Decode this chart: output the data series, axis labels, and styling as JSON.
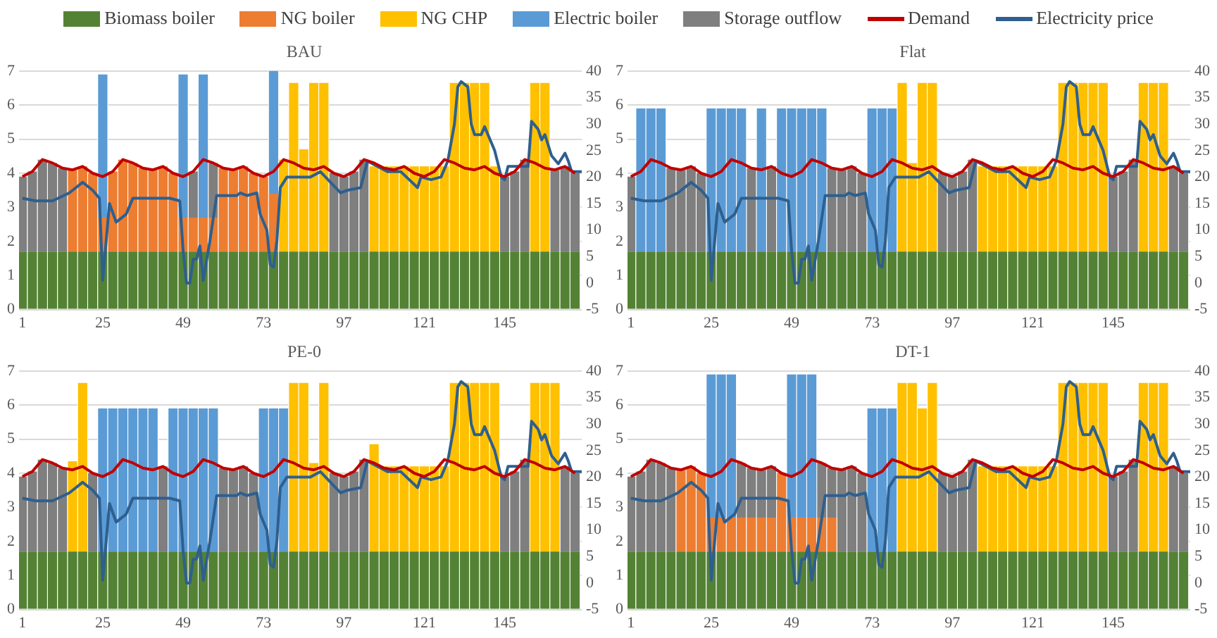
{
  "chart_data": [
    {
      "type": "bar",
      "title": "BAU",
      "stacked": true,
      "legend": "top",
      "grid": "y",
      "xlim": [
        0,
        168
      ],
      "xticks": [
        1,
        25,
        49,
        73,
        97,
        121,
        145
      ],
      "ylim": [
        0,
        7
      ],
      "yticks": [
        0,
        1,
        2,
        3,
        4,
        5,
        6,
        7
      ],
      "y2lim": [
        -5,
        40
      ],
      "y2ticks": [
        -5,
        0,
        5,
        10,
        15,
        20,
        25,
        30,
        35,
        40
      ],
      "x": [
        1,
        4,
        7,
        10,
        13,
        16,
        19,
        22,
        25,
        28,
        31,
        34,
        37,
        40,
        43,
        46,
        49,
        52,
        55,
        58,
        61,
        64,
        67,
        70,
        73,
        76,
        79,
        82,
        85,
        88,
        91,
        94,
        97,
        100,
        103,
        106,
        109,
        112,
        115,
        118,
        121,
        124,
        127,
        130,
        133,
        136,
        139,
        142,
        145,
        148,
        151,
        154,
        157,
        160,
        163,
        166
      ],
      "series": [
        {
          "name": "Biomass boiler",
          "color": "#548235",
          "values": [
            1.7,
            1.7,
            1.7,
            1.7,
            1.7,
            1.7,
            1.7,
            1.7,
            1.7,
            1.7,
            1.7,
            1.7,
            1.7,
            1.7,
            1.7,
            1.7,
            1.7,
            1.7,
            1.7,
            1.7,
            1.7,
            1.7,
            1.7,
            1.7,
            1.7,
            1.7,
            1.7,
            1.7,
            1.7,
            1.7,
            1.7,
            1.7,
            1.7,
            1.7,
            1.7,
            1.7,
            1.7,
            1.7,
            1.7,
            1.7,
            1.7,
            1.7,
            1.7,
            1.7,
            1.7,
            1.7,
            1.7,
            1.7,
            1.7,
            1.7,
            1.7,
            1.7,
            1.7,
            1.7,
            1.7,
            1.7
          ]
        },
        {
          "name": "NG boiler",
          "color": "#ed7d31",
          "values": [
            0,
            0,
            0,
            0,
            0,
            2.4,
            2.5,
            2.3,
            1,
            2.35,
            2.7,
            2.6,
            2.45,
            2.4,
            2.5,
            2.3,
            1,
            1,
            1,
            1,
            2.45,
            2.4,
            2.5,
            2.3,
            2.2,
            1.7,
            0,
            0,
            0,
            0,
            0,
            0,
            0,
            0,
            0,
            0,
            0,
            0,
            0,
            0,
            0,
            0,
            0,
            0,
            0,
            0,
            0,
            0,
            0,
            0,
            0,
            0,
            0,
            0,
            0,
            0
          ]
        },
        {
          "name": "NG CHP",
          "color": "#ffc000",
          "values": [
            0,
            0,
            0,
            0,
            0,
            0,
            0,
            0,
            0,
            0,
            0,
            0,
            0,
            0,
            0,
            0,
            0,
            0,
            0,
            0,
            0,
            0,
            0,
            0,
            0,
            0,
            2.7,
            4.95,
            3,
            4.95,
            4.95,
            0,
            0,
            0,
            0,
            2.5,
            2.5,
            2.5,
            2.5,
            2.5,
            2.5,
            2.5,
            2.5,
            4.95,
            4.95,
            4.95,
            4.95,
            2.5,
            0,
            0,
            0,
            4.95,
            4.95,
            0,
            0,
            0
          ]
        },
        {
          "name": "Electric boiler",
          "color": "#5b9bd5",
          "values": [
            0,
            0,
            0,
            0,
            0,
            0,
            0,
            0,
            4.2,
            0,
            0,
            0,
            0,
            0,
            0,
            0,
            4.2,
            0,
            4.2,
            0,
            0,
            0,
            0,
            0,
            0,
            3.6,
            0,
            0,
            0,
            0,
            0,
            0,
            0,
            0,
            0,
            0,
            0,
            0,
            0,
            0,
            0,
            0,
            0,
            0,
            0,
            0,
            0,
            0,
            0,
            0,
            0,
            0,
            0,
            0,
            0,
            0
          ]
        },
        {
          "name": "Storage outflow",
          "color": "#7f7f7f",
          "values": [
            2.2,
            2.35,
            2.7,
            2.6,
            2.45,
            0,
            0,
            0,
            0,
            0,
            0,
            0,
            0,
            0,
            0,
            0,
            0,
            1.35,
            0,
            1.6,
            0,
            0,
            0,
            0,
            0,
            0,
            0,
            0,
            0,
            0,
            0,
            2.3,
            2.2,
            2.35,
            2.7,
            0,
            0,
            0,
            0,
            0,
            0,
            0,
            0,
            0,
            0,
            0,
            0,
            0,
            2.2,
            2.35,
            2.7,
            0,
            0,
            2.4,
            2.5,
            2.3
          ]
        },
        {
          "name": "Demand",
          "type": "line",
          "color": "#c00000",
          "values": [
            3.9,
            4.05,
            4.4,
            4.3,
            4.15,
            4.1,
            4.2,
            4.0,
            3.9,
            4.05,
            4.4,
            4.3,
            4.15,
            4.1,
            4.2,
            4.0,
            3.9,
            4.05,
            4.4,
            4.3,
            4.15,
            4.1,
            4.2,
            4.0,
            3.9,
            4.05,
            4.4,
            4.3,
            4.15,
            4.1,
            4.2,
            4.0,
            3.9,
            4.05,
            4.4,
            4.3,
            4.15,
            4.1,
            4.2,
            4.0,
            3.9,
            4.05,
            4.4,
            4.3,
            4.15,
            4.1,
            4.2,
            4.0,
            3.9,
            4.05,
            4.4,
            4.3,
            4.15,
            4.1,
            4.2,
            4.0
          ]
        },
        {
          "name": "Electricity price",
          "type": "line",
          "axis": "y2",
          "color": "#2e5f8e",
          "x": [
            1,
            5,
            10,
            15,
            19,
            22,
            24,
            25,
            27,
            29,
            32,
            34,
            40,
            45,
            48,
            49,
            50,
            51,
            52,
            53,
            54,
            55,
            57,
            59,
            65,
            66,
            68,
            71,
            72,
            74,
            75,
            76,
            77,
            78,
            80,
            87,
            90,
            96,
            98,
            102,
            104,
            107,
            110,
            114,
            119,
            120,
            123,
            126,
            128,
            130,
            131,
            132,
            134,
            135,
            136,
            138,
            139,
            142,
            144,
            145,
            146,
            151,
            152,
            153,
            155,
            156,
            157,
            159,
            161,
            163,
            164,
            165,
            168
          ],
          "values": [
            16,
            15.5,
            15.5,
            17,
            19,
            17.5,
            16,
            0.5,
            15,
            11.5,
            13,
            16,
            16,
            16,
            15.5,
            6,
            0,
            0,
            4.5,
            4.5,
            7,
            0.5,
            8,
            16.5,
            16.5,
            17,
            16.5,
            17,
            13,
            10,
            3.5,
            3,
            8,
            18,
            20,
            20,
            21,
            17,
            17.5,
            18,
            23,
            22,
            21,
            21,
            18,
            20,
            19.5,
            20,
            23,
            30,
            37,
            38,
            37,
            30,
            28,
            28,
            29.5,
            25,
            20,
            19.5,
            22,
            22,
            22,
            30.5,
            29,
            27,
            28,
            24,
            22.5,
            24.5,
            23,
            21,
            21
          ]
        }
      ]
    },
    {
      "type": "bar",
      "title": "Flat",
      "stacked": true,
      "grid": "y",
      "xlim": [
        0,
        168
      ],
      "xticks": [
        1,
        25,
        49,
        73,
        97,
        121,
        145
      ],
      "ylim": [
        0,
        7
      ],
      "yticks": [
        0,
        1,
        2,
        3,
        4,
        5,
        6,
        7
      ],
      "y2lim": [
        -5,
        40
      ],
      "y2ticks": [
        -5,
        0,
        5,
        10,
        15,
        20,
        25,
        30,
        35,
        40
      ],
      "x": [
        1,
        4,
        7,
        10,
        13,
        16,
        19,
        22,
        25,
        28,
        31,
        34,
        37,
        40,
        43,
        46,
        49,
        52,
        55,
        58,
        61,
        64,
        67,
        70,
        73,
        76,
        79,
        82,
        85,
        88,
        91,
        94,
        97,
        100,
        103,
        106,
        109,
        112,
        115,
        118,
        121,
        124,
        127,
        130,
        133,
        136,
        139,
        142,
        145,
        148,
        151,
        154,
        157,
        160,
        163,
        166
      ],
      "series": [
        {
          "color": "#548235",
          "values": [
            1.7,
            1.7,
            1.7,
            1.7,
            1.7,
            1.7,
            1.7,
            1.7,
            1.7,
            1.7,
            1.7,
            1.7,
            1.7,
            1.7,
            1.7,
            1.7,
            1.7,
            1.7,
            1.7,
            1.7,
            1.7,
            1.7,
            1.7,
            1.7,
            1.7,
            1.7,
            1.7,
            1.7,
            1.7,
            1.7,
            1.7,
            1.7,
            1.7,
            1.7,
            1.7,
            1.7,
            1.7,
            1.7,
            1.7,
            1.7,
            1.7,
            1.7,
            1.7,
            1.7,
            1.7,
            1.7,
            1.7,
            1.7,
            1.7,
            1.7,
            1.7,
            1.7,
            1.7,
            1.7,
            1.7,
            1.7
          ]
        },
        {
          "color": "#ffc000",
          "values": [
            0,
            0,
            0,
            0,
            0,
            0,
            0,
            0,
            0,
            0,
            0,
            0,
            0,
            0,
            0,
            0,
            0,
            0,
            0,
            0,
            0,
            0,
            0,
            0,
            0,
            0,
            0,
            4.95,
            2.6,
            4.95,
            4.95,
            0,
            0,
            0,
            0,
            2.5,
            2.5,
            2.5,
            2.5,
            2.5,
            2.5,
            2.5,
            2.5,
            4.95,
            4.95,
            4.95,
            4.95,
            4.95,
            0,
            0,
            0,
            4.95,
            4.95,
            4.95,
            0,
            0
          ]
        },
        {
          "color": "#5b9bd5",
          "values": [
            0,
            4.2,
            4.2,
            4.2,
            0,
            0,
            0,
            0,
            4.2,
            4.2,
            4.2,
            4.2,
            0,
            4.2,
            0,
            4.2,
            4.2,
            4.2,
            4.2,
            4.2,
            0,
            0,
            0,
            0,
            4.2,
            4.2,
            4.2,
            0,
            0,
            0,
            0,
            0,
            0,
            0,
            0,
            0,
            0,
            0,
            0,
            0,
            0,
            0,
            0,
            0,
            0,
            0,
            0,
            0,
            0,
            0,
            0,
            0,
            0,
            0,
            0,
            0
          ]
        },
        {
          "color": "#7f7f7f",
          "values": [
            2.2,
            0,
            0,
            0,
            2.45,
            2.4,
            2.5,
            2.3,
            0,
            0,
            0,
            0,
            2.45,
            0,
            2.5,
            0,
            0,
            0,
            0,
            0,
            2.45,
            2.4,
            2.5,
            2.3,
            0,
            0,
            0,
            0,
            0,
            0,
            0,
            2.3,
            2.2,
            2.35,
            2.7,
            0,
            0,
            0,
            0,
            0,
            0,
            0,
            0,
            0,
            0,
            0,
            0,
            0,
            2.2,
            2.35,
            2.7,
            0,
            0,
            0,
            2.5,
            2.3
          ]
        },
        {
          "type": "line",
          "color": "#c00000",
          "values": [
            3.9,
            4.05,
            4.4,
            4.3,
            4.15,
            4.1,
            4.2,
            4.0,
            3.9,
            4.05,
            4.4,
            4.3,
            4.15,
            4.1,
            4.2,
            4.0,
            3.9,
            4.05,
            4.4,
            4.3,
            4.15,
            4.1,
            4.2,
            4.0,
            3.9,
            4.05,
            4.4,
            4.3,
            4.15,
            4.1,
            4.2,
            4.0,
            3.9,
            4.05,
            4.4,
            4.3,
            4.15,
            4.1,
            4.2,
            4.0,
            3.9,
            4.05,
            4.4,
            4.3,
            4.15,
            4.1,
            4.2,
            4.0,
            3.9,
            4.05,
            4.4,
            4.3,
            4.15,
            4.1,
            4.2,
            4.0
          ]
        },
        {
          "type": "line",
          "axis": "y2",
          "color": "#2e5f8e",
          "x": [
            1,
            5,
            10,
            15,
            19,
            22,
            24,
            25,
            27,
            29,
            32,
            34,
            40,
            45,
            48,
            49,
            50,
            51,
            52,
            53,
            54,
            55,
            57,
            59,
            65,
            66,
            68,
            71,
            72,
            74,
            75,
            76,
            77,
            78,
            80,
            87,
            90,
            96,
            98,
            102,
            104,
            107,
            110,
            114,
            119,
            120,
            123,
            126,
            128,
            130,
            131,
            132,
            134,
            135,
            136,
            138,
            139,
            142,
            144,
            145,
            146,
            151,
            152,
            153,
            155,
            156,
            157,
            159,
            161,
            163,
            164,
            165,
            168
          ],
          "values": [
            16,
            15.5,
            15.5,
            17,
            19,
            17.5,
            16,
            0.5,
            15,
            11.5,
            13,
            16,
            16,
            16,
            15.5,
            6,
            0,
            0,
            4.5,
            4.5,
            7,
            0.5,
            8,
            16.5,
            16.5,
            17,
            16.5,
            17,
            13,
            10,
            3.5,
            3,
            8,
            18,
            20,
            20,
            21,
            17,
            17.5,
            18,
            23,
            22,
            21,
            21,
            18,
            20,
            19.5,
            20,
            23,
            30,
            37,
            38,
            37,
            30,
            28,
            28,
            29.5,
            25,
            20,
            19.5,
            22,
            22,
            22,
            30.5,
            29,
            27,
            28,
            24,
            22.5,
            24.5,
            23,
            21,
            21
          ]
        }
      ]
    },
    {
      "type": "bar",
      "title": "PE-0",
      "stacked": true,
      "grid": "y",
      "xlim": [
        0,
        168
      ],
      "xticks": [
        1,
        25,
        49,
        73,
        97,
        121,
        145
      ],
      "ylim": [
        0,
        7
      ],
      "yticks": [
        0,
        1,
        2,
        3,
        4,
        5,
        6,
        7
      ],
      "y2lim": [
        -5,
        40
      ],
      "y2ticks": [
        -5,
        0,
        5,
        10,
        15,
        20,
        25,
        30,
        35,
        40
      ],
      "x": [
        1,
        4,
        7,
        10,
        13,
        16,
        19,
        22,
        25,
        28,
        31,
        34,
        37,
        40,
        43,
        46,
        49,
        52,
        55,
        58,
        61,
        64,
        67,
        70,
        73,
        76,
        79,
        82,
        85,
        88,
        91,
        94,
        97,
        100,
        103,
        106,
        109,
        112,
        115,
        118,
        121,
        124,
        127,
        130,
        133,
        136,
        139,
        142,
        145,
        148,
        151,
        154,
        157,
        160,
        163,
        166
      ],
      "series": [
        {
          "color": "#548235",
          "values": [
            1.7,
            1.7,
            1.7,
            1.7,
            1.7,
            1.7,
            1.7,
            1.7,
            1.7,
            1.7,
            1.7,
            1.7,
            1.7,
            1.7,
            1.7,
            1.7,
            1.7,
            1.7,
            1.7,
            1.7,
            1.7,
            1.7,
            1.7,
            1.7,
            1.7,
            1.7,
            1.7,
            1.7,
            1.7,
            1.7,
            1.7,
            1.7,
            1.7,
            1.7,
            1.7,
            1.7,
            1.7,
            1.7,
            1.7,
            1.7,
            1.7,
            1.7,
            1.7,
            1.7,
            1.7,
            1.7,
            1.7,
            1.7,
            1.7,
            1.7,
            1.7,
            1.7,
            1.7,
            1.7,
            1.7,
            1.7
          ]
        },
        {
          "color": "#ffc000",
          "values": [
            0,
            0,
            0,
            0,
            0,
            2.65,
            4.95,
            0,
            0,
            0,
            0,
            0,
            0,
            0,
            0,
            0,
            0,
            0,
            0,
            0,
            0,
            0,
            0,
            0,
            0,
            0,
            0,
            4.95,
            4.95,
            2.6,
            4.95,
            0,
            0,
            0,
            0,
            3.15,
            2.5,
            2.5,
            2.5,
            2.5,
            2.5,
            2.5,
            2.5,
            4.95,
            4.95,
            4.95,
            4.95,
            4.95,
            0,
            0,
            0,
            4.95,
            4.95,
            4.95,
            0,
            0
          ]
        },
        {
          "color": "#5b9bd5",
          "values": [
            0,
            0,
            0,
            0,
            0,
            0,
            0,
            0,
            4.2,
            4.2,
            4.2,
            4.2,
            4.2,
            4.2,
            0,
            4.2,
            4.2,
            4.2,
            4.2,
            4.2,
            0,
            0,
            0,
            0,
            4.2,
            4.2,
            4.2,
            0,
            0,
            0,
            0,
            0,
            0,
            0,
            0,
            0,
            0,
            0,
            0,
            0,
            0,
            0,
            0,
            0,
            0,
            0,
            0,
            0,
            0,
            0,
            0,
            0,
            0,
            0,
            0,
            0
          ]
        },
        {
          "color": "#7f7f7f",
          "values": [
            2.2,
            2.35,
            2.7,
            2.6,
            2.45,
            0,
            0,
            2.3,
            0,
            0,
            0,
            0,
            0,
            0,
            2.5,
            0,
            0,
            0,
            0,
            0,
            2.45,
            2.4,
            2.5,
            2.3,
            0,
            0,
            0,
            0,
            0,
            0,
            0,
            2.3,
            2.2,
            2.35,
            2.7,
            0,
            0,
            0,
            0,
            0,
            0,
            0,
            0,
            0,
            0,
            0,
            0,
            0,
            2.2,
            2.35,
            2.7,
            0,
            0,
            0,
            2.5,
            2.3
          ]
        },
        {
          "type": "line",
          "color": "#c00000",
          "values": [
            3.9,
            4.05,
            4.4,
            4.3,
            4.15,
            4.1,
            4.2,
            4.0,
            3.9,
            4.05,
            4.4,
            4.3,
            4.15,
            4.1,
            4.2,
            4.0,
            3.9,
            4.05,
            4.4,
            4.3,
            4.15,
            4.1,
            4.2,
            4.0,
            3.9,
            4.05,
            4.4,
            4.3,
            4.15,
            4.1,
            4.2,
            4.0,
            3.9,
            4.05,
            4.4,
            4.3,
            4.15,
            4.1,
            4.2,
            4.0,
            3.9,
            4.05,
            4.4,
            4.3,
            4.15,
            4.1,
            4.2,
            4.0,
            3.9,
            4.05,
            4.4,
            4.3,
            4.15,
            4.1,
            4.2,
            4.0
          ]
        },
        {
          "type": "line",
          "axis": "y2",
          "color": "#2e5f8e",
          "x": [
            1,
            5,
            10,
            15,
            19,
            22,
            24,
            25,
            27,
            29,
            32,
            34,
            40,
            45,
            48,
            49,
            50,
            51,
            52,
            53,
            54,
            55,
            57,
            59,
            65,
            66,
            68,
            71,
            72,
            74,
            75,
            76,
            77,
            78,
            80,
            87,
            90,
            96,
            98,
            102,
            104,
            107,
            110,
            114,
            119,
            120,
            123,
            126,
            128,
            130,
            131,
            132,
            134,
            135,
            136,
            138,
            139,
            142,
            144,
            145,
            146,
            151,
            152,
            153,
            155,
            156,
            157,
            159,
            161,
            163,
            164,
            165,
            168
          ],
          "values": [
            16,
            15.5,
            15.5,
            17,
            19,
            17.5,
            16,
            0.5,
            15,
            11.5,
            13,
            16,
            16,
            16,
            15.5,
            6,
            0,
            0,
            4.5,
            4.5,
            7,
            0.5,
            8,
            16.5,
            16.5,
            17,
            16.5,
            17,
            13,
            10,
            3.5,
            3,
            8,
            18,
            20,
            20,
            21,
            17,
            17.5,
            18,
            23,
            22,
            21,
            21,
            18,
            20,
            19.5,
            20,
            23,
            30,
            37,
            38,
            37,
            30,
            28,
            28,
            29.5,
            25,
            20,
            19.5,
            22,
            22,
            22,
            30.5,
            29,
            27,
            28,
            24,
            22.5,
            24.5,
            23,
            21,
            21
          ]
        }
      ]
    },
    {
      "type": "bar",
      "title": "DT-1",
      "stacked": true,
      "grid": "y",
      "xlim": [
        0,
        168
      ],
      "xticks": [
        1,
        25,
        49,
        73,
        97,
        121,
        145
      ],
      "ylim": [
        0,
        7
      ],
      "yticks": [
        0,
        1,
        2,
        3,
        4,
        5,
        6,
        7
      ],
      "y2lim": [
        -5,
        40
      ],
      "y2ticks": [
        -5,
        0,
        5,
        10,
        15,
        20,
        25,
        30,
        35,
        40
      ],
      "x": [
        1,
        4,
        7,
        10,
        13,
        16,
        19,
        22,
        25,
        28,
        31,
        34,
        37,
        40,
        43,
        46,
        49,
        52,
        55,
        58,
        61,
        64,
        67,
        70,
        73,
        76,
        79,
        82,
        85,
        88,
        91,
        94,
        97,
        100,
        103,
        106,
        109,
        112,
        115,
        118,
        121,
        124,
        127,
        130,
        133,
        136,
        139,
        142,
        145,
        148,
        151,
        154,
        157,
        160,
        163,
        166
      ],
      "series": [
        {
          "color": "#548235",
          "values": [
            1.7,
            1.7,
            1.7,
            1.7,
            1.7,
            1.7,
            1.7,
            1.7,
            1.7,
            1.7,
            1.7,
            1.7,
            1.7,
            1.7,
            1.7,
            1.7,
            1.7,
            1.7,
            1.7,
            1.7,
            1.7,
            1.7,
            1.7,
            1.7,
            1.7,
            1.7,
            1.7,
            1.7,
            1.7,
            1.7,
            1.7,
            1.7,
            1.7,
            1.7,
            1.7,
            1.7,
            1.7,
            1.7,
            1.7,
            1.7,
            1.7,
            1.7,
            1.7,
            1.7,
            1.7,
            1.7,
            1.7,
            1.7,
            1.7,
            1.7,
            1.7,
            1.7,
            1.7,
            1.7,
            1.7,
            1.7
          ]
        },
        {
          "color": "#ed7d31",
          "values": [
            0,
            0,
            0,
            0,
            0,
            2.4,
            2.5,
            2.3,
            1,
            1,
            1,
            1,
            1,
            1,
            1,
            2.3,
            1,
            1,
            1,
            1,
            1,
            0,
            0,
            0,
            0,
            0,
            0,
            0,
            0,
            0,
            0,
            0,
            0,
            0,
            0,
            0,
            0,
            0,
            0,
            0,
            0,
            0,
            0,
            0,
            0,
            0,
            0,
            0,
            0,
            0,
            0,
            0,
            0,
            0,
            0,
            0
          ]
        },
        {
          "color": "#ffc000",
          "values": [
            0,
            0,
            0,
            0,
            0,
            0,
            0,
            0,
            0,
            0,
            0,
            0,
            0,
            0,
            0,
            0,
            0,
            0,
            0,
            0,
            0,
            0,
            0,
            0,
            0,
            0,
            0,
            4.95,
            4.95,
            4.2,
            4.95,
            0,
            0,
            0,
            0,
            2.5,
            2.5,
            2.5,
            2.5,
            2.5,
            2.5,
            2.5,
            2.5,
            4.95,
            4.95,
            4.95,
            4.95,
            4.95,
            0,
            0,
            0,
            4.95,
            4.95,
            4.95,
            0,
            0
          ]
        },
        {
          "color": "#5b9bd5",
          "values": [
            0,
            0,
            0,
            0,
            0,
            0,
            0,
            0,
            4.2,
            4.2,
            4.2,
            0,
            0,
            0,
            0,
            0,
            4.2,
            4.2,
            4.2,
            0,
            0,
            0,
            0,
            0,
            4.2,
            4.2,
            4.2,
            0,
            0,
            0,
            0,
            0,
            0,
            0,
            0,
            0,
            0,
            0,
            0,
            0,
            0,
            0,
            0,
            0,
            0,
            0,
            0,
            0,
            0,
            0,
            0,
            0,
            0,
            0,
            0,
            0
          ]
        },
        {
          "color": "#7f7f7f",
          "values": [
            2.2,
            2.35,
            2.7,
            2.6,
            2.45,
            0,
            0,
            0,
            0,
            0,
            0,
            1.6,
            1.45,
            1.4,
            1.5,
            0,
            0,
            0,
            0,
            1.6,
            1.45,
            2.4,
            2.5,
            2.3,
            0,
            0,
            0,
            0,
            0,
            0,
            0,
            2.3,
            2.2,
            2.35,
            2.7,
            0,
            0,
            0,
            0,
            0,
            0,
            0,
            0,
            0,
            0,
            0,
            0,
            0,
            2.2,
            2.35,
            2.7,
            0,
            0,
            0,
            2.5,
            2.3
          ]
        },
        {
          "type": "line",
          "color": "#c00000",
          "values": [
            3.9,
            4.05,
            4.4,
            4.3,
            4.15,
            4.1,
            4.2,
            4.0,
            3.9,
            4.05,
            4.4,
            4.3,
            4.15,
            4.1,
            4.2,
            4.0,
            3.9,
            4.05,
            4.4,
            4.3,
            4.15,
            4.1,
            4.2,
            4.0,
            3.9,
            4.05,
            4.4,
            4.3,
            4.15,
            4.1,
            4.2,
            4.0,
            3.9,
            4.05,
            4.4,
            4.3,
            4.15,
            4.1,
            4.2,
            4.0,
            3.9,
            4.05,
            4.4,
            4.3,
            4.15,
            4.1,
            4.2,
            4.0,
            3.9,
            4.05,
            4.4,
            4.3,
            4.15,
            4.1,
            4.2,
            4.0
          ]
        },
        {
          "type": "line",
          "axis": "y2",
          "color": "#2e5f8e",
          "x": [
            1,
            5,
            10,
            15,
            19,
            22,
            24,
            25,
            27,
            29,
            32,
            34,
            40,
            45,
            48,
            49,
            50,
            51,
            52,
            53,
            54,
            55,
            57,
            59,
            65,
            66,
            68,
            71,
            72,
            74,
            75,
            76,
            77,
            78,
            80,
            87,
            90,
            96,
            98,
            102,
            104,
            107,
            110,
            114,
            119,
            120,
            123,
            126,
            128,
            130,
            131,
            132,
            134,
            135,
            136,
            138,
            139,
            142,
            144,
            145,
            146,
            151,
            152,
            153,
            155,
            156,
            157,
            159,
            161,
            163,
            164,
            165,
            168
          ],
          "values": [
            16,
            15.5,
            15.5,
            17,
            19,
            17.5,
            16,
            0.5,
            15,
            11.5,
            13,
            16,
            16,
            16,
            15.5,
            6,
            0,
            0,
            4.5,
            4.5,
            7,
            0.5,
            8,
            16.5,
            16.5,
            17,
            16.5,
            17,
            13,
            10,
            3.5,
            3,
            8,
            18,
            20,
            20,
            21,
            17,
            17.5,
            18,
            23,
            22,
            21,
            21,
            18,
            20,
            19.5,
            20,
            23,
            30,
            37,
            38,
            37,
            30,
            28,
            28,
            29.5,
            25,
            20,
            19.5,
            22,
            22,
            22,
            30.5,
            29,
            27,
            28,
            24,
            22.5,
            24.5,
            23,
            21,
            21
          ]
        }
      ]
    }
  ]
}
